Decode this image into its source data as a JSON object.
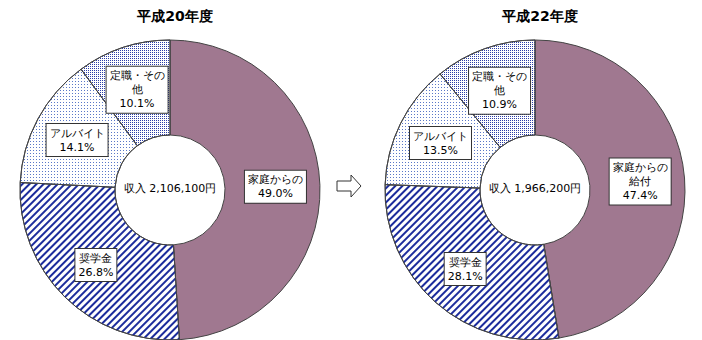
{
  "chart_data": [
    {
      "type": "pie",
      "title": "平成20年度",
      "annotations": [
        "収入 2,106,100円"
      ],
      "categories": [
        "家庭からの",
        "奨学金",
        "アルバイト",
        "定職・その他"
      ],
      "values": [
        49.0,
        26.8,
        14.1,
        10.1
      ],
      "value_labels": [
        "49.0%",
        "26.8%",
        "14.1%",
        "10.1%"
      ],
      "colors": [
        "#a07890",
        "#1c2c9c",
        "#5a78c8",
        "#2c3ea8"
      ],
      "data_labels": true
    },
    {
      "type": "pie",
      "title": "平成22年度",
      "annotations": [
        "収入 1,966,200円"
      ],
      "categories": [
        "家庭からの給付",
        "奨学金",
        "アルバイト",
        "定職・その他"
      ],
      "values": [
        47.4,
        28.1,
        13.5,
        10.9
      ],
      "value_labels": [
        "47.4%",
        "28.1%",
        "13.5%",
        "10.9%"
      ],
      "colors": [
        "#a07890",
        "#1c2c9c",
        "#5a78c8",
        "#2c3ea8"
      ],
      "data_labels": true
    }
  ]
}
